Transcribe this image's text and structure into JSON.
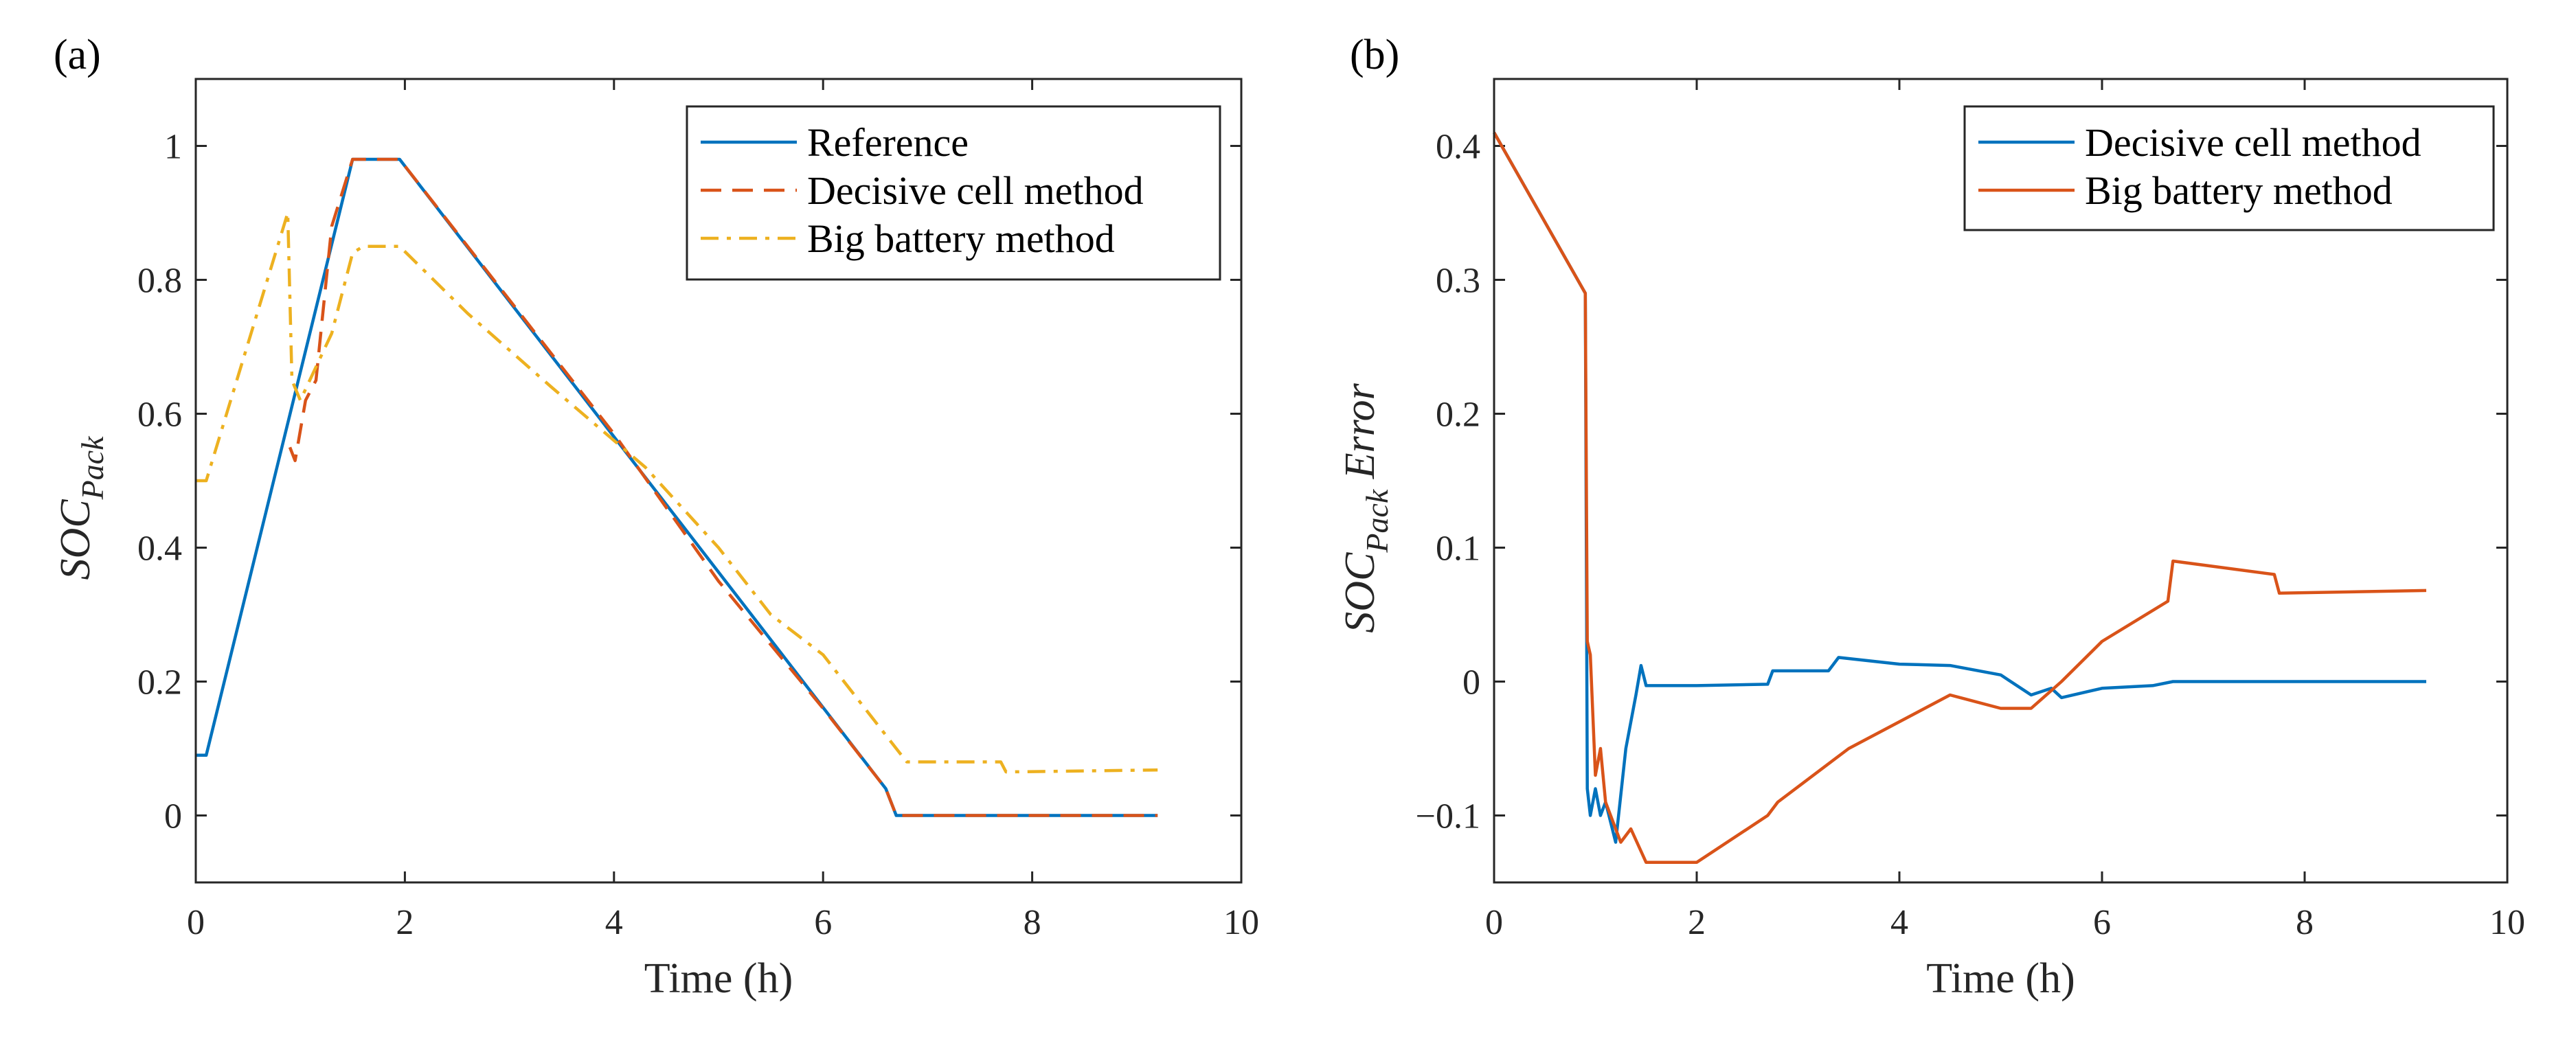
{
  "chart_data": [
    {
      "type": "line",
      "panel_label": "(a)",
      "xlabel": "Time (h)",
      "ylabel_main": "SOC",
      "ylabel_sub": "Pack",
      "ylabel_suffix": "",
      "xlim": [
        0,
        10
      ],
      "ylim": [
        -0.1,
        1.1
      ],
      "xticks": [
        0,
        2,
        4,
        6,
        8,
        10
      ],
      "xtick_labels": [
        "0",
        "2",
        "4",
        "6",
        "8",
        "10"
      ],
      "yticks": [
        0,
        0.2,
        0.4,
        0.6,
        0.8,
        1
      ],
      "ytick_labels": [
        "0",
        "0.2",
        "0.4",
        "0.6",
        "0.8",
        "1"
      ],
      "grid": false,
      "legend_position": "top-right",
      "series": [
        {
          "name": "Reference",
          "color": "#0072BD",
          "dash": "solid",
          "x": [
            0,
            0.1,
            1.5,
            1.95,
            6.6,
            6.7,
            7.0,
            8.0,
            9.2
          ],
          "y": [
            0.09,
            0.09,
            0.98,
            0.98,
            0.04,
            0.0,
            0.0,
            0.0,
            0.0
          ]
        },
        {
          "name": "Decisive cell method",
          "color": "#D95319",
          "dash": "dashed",
          "x": [
            0.9,
            0.95,
            1.05,
            1.15,
            1.3,
            1.5,
            1.95,
            3.0,
            4.0,
            5.0,
            6.0,
            6.6,
            6.7,
            9.2
          ],
          "y": [
            0.55,
            0.53,
            0.62,
            0.65,
            0.88,
            0.98,
            0.98,
            0.77,
            0.57,
            0.35,
            0.16,
            0.04,
            0.0,
            0.0
          ]
        },
        {
          "name": "Big battery method",
          "color": "#EDB120",
          "dash": "dashdot",
          "x": [
            0,
            0.1,
            0.88,
            0.92,
            1.0,
            1.3,
            1.5,
            1.6,
            1.95,
            2.6,
            3.4,
            4.3,
            5.0,
            5.5,
            6.0,
            6.7,
            6.8,
            7.7,
            7.75,
            9.2
          ],
          "y": [
            0.5,
            0.5,
            0.9,
            0.65,
            0.62,
            0.72,
            0.84,
            0.85,
            0.85,
            0.75,
            0.64,
            0.52,
            0.4,
            0.3,
            0.24,
            0.1,
            0.08,
            0.08,
            0.065,
            0.068
          ]
        }
      ]
    },
    {
      "type": "line",
      "panel_label": "(b)",
      "xlabel": "Time (h)",
      "ylabel_main": "SOC",
      "ylabel_sub": "Pack",
      "ylabel_suffix": " Error",
      "xlim": [
        0,
        10
      ],
      "ylim": [
        -0.15,
        0.45
      ],
      "xticks": [
        0,
        2,
        4,
        6,
        8,
        10
      ],
      "xtick_labels": [
        "0",
        "2",
        "4",
        "6",
        "8",
        "10"
      ],
      "yticks": [
        -0.1,
        0,
        0.1,
        0.2,
        0.3,
        0.4
      ],
      "ytick_labels": [
        "−0.1",
        "0",
        "0.1",
        "0.2",
        "0.3",
        "0.4"
      ],
      "grid": false,
      "legend_position": "top-right",
      "series": [
        {
          "name": "Decisive cell method",
          "color": "#0072BD",
          "dash": "solid",
          "x": [
            0,
            0.9,
            0.92,
            0.95,
            1.0,
            1.05,
            1.1,
            1.2,
            1.3,
            1.4,
            1.45,
            1.5,
            1.6,
            2.0,
            2.7,
            2.75,
            3.3,
            3.4,
            4.0,
            4.5,
            5.0,
            5.3,
            5.5,
            5.6,
            6.0,
            6.5,
            6.7,
            7.0,
            8.0,
            9.2
          ],
          "y": [
            0.41,
            0.29,
            -0.08,
            -0.1,
            -0.08,
            -0.1,
            -0.09,
            -0.12,
            -0.05,
            -0.01,
            0.012,
            -0.003,
            -0.003,
            -0.003,
            -0.002,
            0.008,
            0.008,
            0.018,
            0.013,
            0.012,
            0.005,
            -0.01,
            -0.005,
            -0.012,
            -0.005,
            -0.003,
            0.0,
            0.0,
            0.0,
            0.0
          ]
        },
        {
          "name": "Big battery method",
          "color": "#D95319",
          "dash": "solid",
          "x": [
            0,
            0.9,
            0.92,
            0.95,
            1.0,
            1.05,
            1.1,
            1.25,
            1.35,
            1.5,
            2.0,
            2.7,
            2.8,
            3.5,
            4.5,
            5.0,
            5.3,
            5.6,
            6.0,
            6.65,
            6.7,
            7.7,
            7.75,
            9.2
          ],
          "y": [
            0.41,
            0.29,
            0.03,
            0.02,
            -0.07,
            -0.05,
            -0.09,
            -0.12,
            -0.11,
            -0.135,
            -0.135,
            -0.1,
            -0.09,
            -0.05,
            -0.01,
            -0.02,
            -0.02,
            0.0,
            0.03,
            0.06,
            0.09,
            0.08,
            0.066,
            0.068
          ]
        }
      ]
    }
  ]
}
